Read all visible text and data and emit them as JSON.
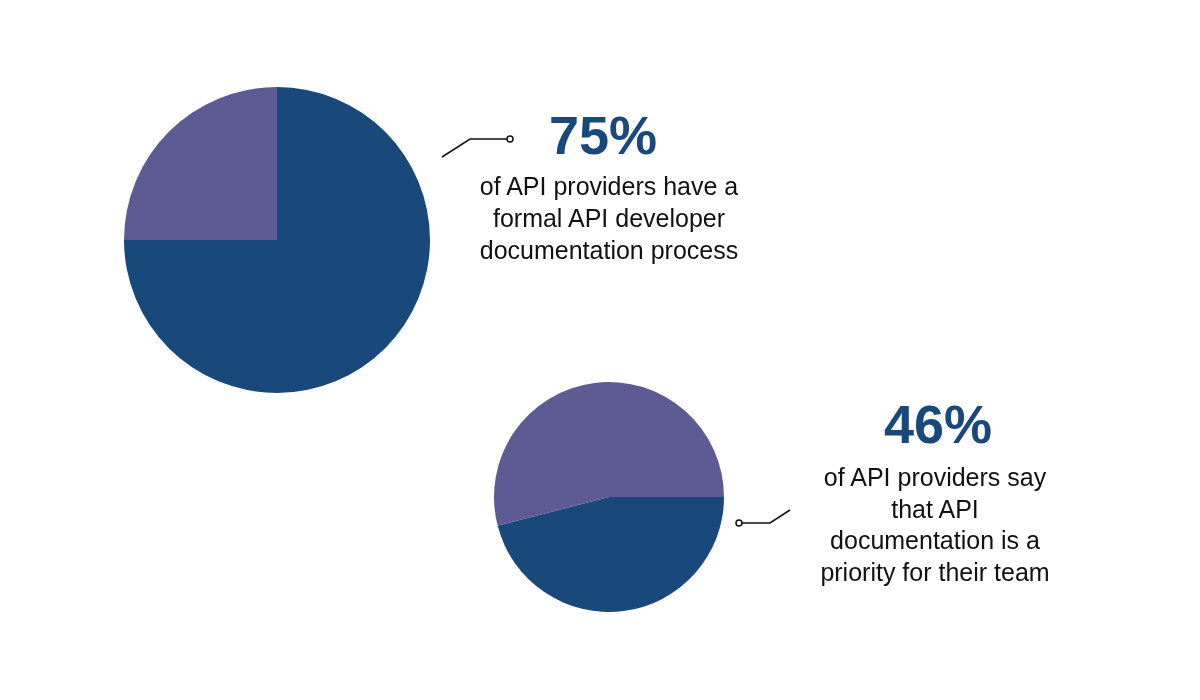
{
  "chart_data": [
    {
      "type": "pie",
      "categories": [
        null,
        null
      ],
      "values": [
        75,
        25
      ],
      "colors": [
        "#19487a",
        "#5e5b94"
      ],
      "value_labels": [
        "75%",
        null
      ],
      "annotations": [
        "of API providers have a\nformal API developer\ndocumentation process"
      ]
    },
    {
      "type": "pie",
      "categories": [
        null,
        null
      ],
      "values": [
        46,
        54
      ],
      "colors": [
        "#19487a",
        "#5e5b94"
      ],
      "value_labels": [
        "46%",
        null
      ],
      "annotations": [
        "of API providers say\nthat API\ndocumentation is a\npriority for their team"
      ]
    }
  ]
}
